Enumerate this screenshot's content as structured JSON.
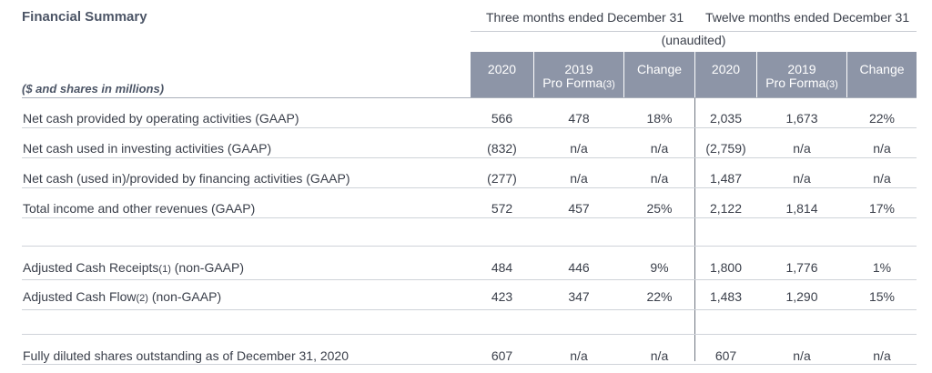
{
  "title": "Financial Summary",
  "periods": {
    "three_months": "Three months ended December 31",
    "twelve_months": "Twelve months ended December 31",
    "unaudited": "(unaudited)"
  },
  "units_label": "($ and shares in millions)",
  "headers": {
    "q_2020": "2020",
    "q_2019": "2019",
    "q_2019_sub": "Pro Forma",
    "q_2019_note": "(3)",
    "q_change": "Change",
    "y_2020": "2020",
    "y_2019": "2019",
    "y_2019_sub": "Pro Forma",
    "y_2019_note": "(3)",
    "y_change": "Change"
  },
  "rows": [
    {
      "label": "Net cash provided by operating activities (GAAP)",
      "note": "",
      "label_suffix": "",
      "values": [
        "566",
        "478",
        "18%",
        "2,035",
        "1,673",
        "22%"
      ]
    },
    {
      "label": "Net cash used in investing activities (GAAP)",
      "note": "",
      "label_suffix": "",
      "values": [
        "(832)",
        "n/a",
        "n/a",
        "(2,759)",
        "n/a",
        "n/a"
      ]
    },
    {
      "label": "Net cash (used in)/provided by financing activities (GAAP)",
      "note": "",
      "label_suffix": "",
      "values": [
        "(277)",
        "n/a",
        "n/a",
        "1,487",
        "n/a",
        "n/a"
      ]
    },
    {
      "label": "Total income and other revenues (GAAP)",
      "note": "",
      "label_suffix": "",
      "values": [
        "572",
        "457",
        "25%",
        "2,122",
        "1,814",
        "17%"
      ]
    },
    {
      "label": "Adjusted Cash Receipts",
      "note": "(1)",
      "label_suffix": " (non-GAAP)",
      "values": [
        "484",
        "446",
        "9%",
        "1,800",
        "1,776",
        "1%"
      ]
    },
    {
      "label": "Adjusted Cash Flow",
      "note": "(2)",
      "label_suffix": " (non-GAAP)",
      "values": [
        "423",
        "347",
        "22%",
        "1,483",
        "1,290",
        "15%"
      ]
    },
    {
      "label": "Fully diluted shares outstanding as of December 31, 2020",
      "note": "",
      "label_suffix": "",
      "values": [
        "607",
        "n/a",
        "n/a",
        "607",
        "n/a",
        "n/a"
      ]
    }
  ]
}
